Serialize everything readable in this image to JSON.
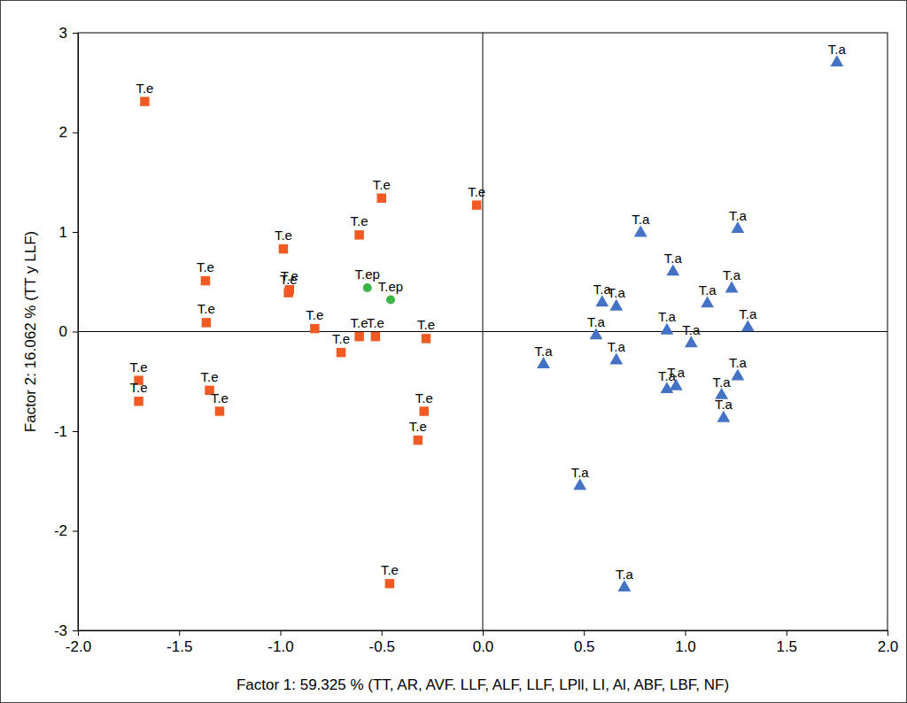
{
  "chart_data": {
    "type": "scatter",
    "x_label": "Factor 1: 59.325 % (TT, AR, AVF. LLF, ALF, LLF, LPll, LI, Al, ABF, LBF, NF)",
    "y_label": "Factor 2: 16.062 % (TT y LLF)",
    "xlim": [
      -2,
      2
    ],
    "ylim": [
      -3,
      3
    ],
    "xticks": [
      {
        "value": -2,
        "label": "-2.0"
      },
      {
        "value": -1.5,
        "label": "-1.5"
      },
      {
        "value": -1,
        "label": "-1.0"
      },
      {
        "value": -0.5,
        "label": "-0.5"
      },
      {
        "value": 0,
        "label": "0.0"
      },
      {
        "value": 0.5,
        "label": "0.5"
      },
      {
        "value": 1,
        "label": "1.0"
      },
      {
        "value": 1.5,
        "label": "1.5"
      },
      {
        "value": 2,
        "label": "2.0"
      }
    ],
    "yticks": [
      -3,
      -2,
      -1,
      0,
      1,
      2,
      3
    ],
    "grid": false,
    "series": [
      {
        "name": "T.e",
        "color": "#f15a22",
        "marker": "square",
        "x": [
          -1.67,
          -0.5,
          -0.03,
          -0.61,
          -0.985,
          -0.955,
          -0.96,
          -1.37,
          -1.366,
          -0.83,
          -0.61,
          -0.53,
          -0.28,
          -0.7,
          -1.7,
          -1.7,
          -1.35,
          -1.3,
          -0.29,
          -0.32,
          -0.46
        ],
        "values": [
          2.31,
          1.34,
          1.27,
          0.97,
          0.83,
          0.42,
          0.39,
          0.51,
          0.09,
          0.03,
          -0.05,
          -0.05,
          -0.07,
          -0.21,
          -0.49,
          -0.7,
          -0.59,
          -0.8,
          -0.8,
          -1.09,
          -2.53
        ]
      },
      {
        "name": "T.ep",
        "color": "#3cb44a",
        "marker": "circle",
        "x": [
          -0.57,
          -0.455
        ],
        "values": [
          0.44,
          0.32
        ]
      },
      {
        "name": "T.a",
        "color": "#4472c4",
        "marker": "triangle",
        "x": [
          1.75,
          0.78,
          1.26,
          0.94,
          1.23,
          1.11,
          0.59,
          0.66,
          1.31,
          0.56,
          0.91,
          1.03,
          0.3,
          0.66,
          0.91,
          0.955,
          1.26,
          1.18,
          1.19,
          0.48,
          0.7
        ],
        "values": [
          2.7,
          0.99,
          1.03,
          0.6,
          0.43,
          0.28,
          0.29,
          0.25,
          0.04,
          -0.04,
          0.01,
          -0.12,
          -0.33,
          -0.29,
          -0.58,
          -0.55,
          -0.45,
          -0.64,
          -0.87,
          -1.55,
          -2.57
        ]
      }
    ]
  }
}
